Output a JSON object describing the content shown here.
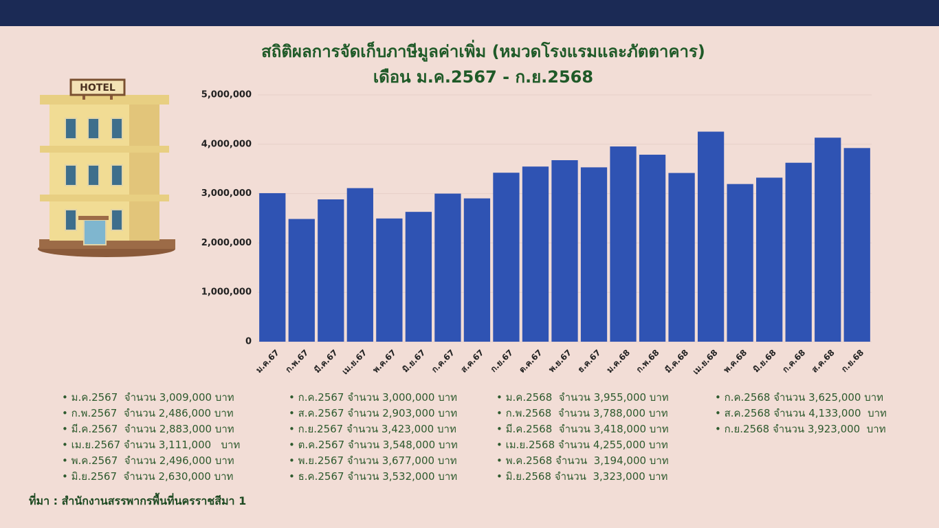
{
  "chart_data": {
    "type": "bar",
    "title": [
      "สถิติผลการจัดเก็บภาษีมูลค่าเพิ่ม (หมวดโรงแรมและภัตตาคาร)",
      "เดือน ม.ค.2567 - ก.ย.2568"
    ],
    "categories": [
      "ม.ค.67",
      "ก.พ.67",
      "มี.ค.67",
      "เม.ย.67",
      "พ.ค.67",
      "มิ.ย.67",
      "ก.ค.67",
      "ส.ค.67",
      "ก.ย.67",
      "ต.ค.67",
      "พ.ย.67",
      "ธ.ค.67",
      "ม.ค.68",
      "ก.พ.68",
      "มี.ค.68",
      "เม.ย.68",
      "พ.ค.68",
      "มิ.ย.68",
      "ก.ค.68",
      "ส.ค.68",
      "ก.ย.68"
    ],
    "values": [
      3009000,
      2486000,
      2883000,
      3111000,
      2496000,
      2630000,
      3000000,
      2903000,
      3423000,
      3548000,
      3677000,
      3532000,
      3955000,
      3788000,
      3418000,
      4255000,
      3194000,
      3323000,
      3625000,
      4133000,
      3923000
    ],
    "color": "#2f53b3",
    "ylim": [
      0,
      5000000
    ],
    "yticks": [
      0,
      {
        "value": 1000000,
        "label": "1,000,000"
      },
      {
        "value": 2000000,
        "label": "2,000,000"
      },
      {
        "value": 3000000,
        "label": "3,000,000"
      },
      {
        "value": 4000000,
        "label": "4,000,000"
      },
      {
        "value": 5000000,
        "label": "5,000,000"
      }
    ],
    "grid": true
  },
  "list": [
    [
      "ม.ค.2567  จำนวน 3,009,000 บาท",
      "ก.พ.2567  จำนวน 2,486,000 บาท",
      "มี.ค.2567  จำนวน 2,883,000 บาท",
      "เม.ย.2567 จำนวน 3,111,000   บาท",
      "พ.ค.2567  จำนวน 2,496,000 บาท",
      "มิ.ย.2567  จำนวน 2,630,000 บาท"
    ],
    [
      "ก.ค.2567 จำนวน 3,000,000 บาท",
      "ส.ค.2567 จำนวน 2,903,000 บาท",
      "ก.ย.2567 จำนวน 3,423,000 บาท",
      "ต.ค.2567 จำนวน 3,548,000 บาท",
      "พ.ย.2567 จำนวน 3,677,000 บาท",
      "ธ.ค.2567 จำนวน 3,532,000 บาท"
    ],
    [
      "ม.ค.2568  จำนวน 3,955,000 บาท",
      "ก.พ.2568  จำนวน 3,788,000 บาท",
      "มี.ค.2568  จำนวน 3,418,000 บาท",
      "เม.ย.2568 จำนวน 4,255,000 บาท",
      "พ.ค.2568 จำนวน  3,194,000 บาท",
      "มิ.ย.2568 จำนวน  3,323,000 บาท"
    ],
    [
      "ก.ค.2568 จำนวน 3,625,000 บาท",
      "ส.ค.2568 จำนวน 4,133,000  บาท",
      "ก.ย.2568 จำนวน 3,923,000  บาท"
    ]
  ],
  "source": "ที่มา : สำนักงานสรรพากรพื้นที่นครราชสีมา 1",
  "sign": "HOTEL"
}
